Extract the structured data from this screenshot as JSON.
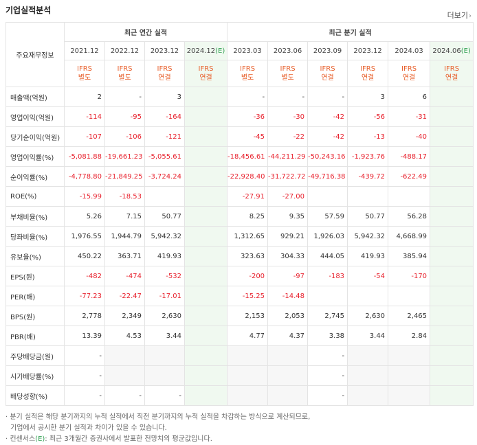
{
  "title": "기업실적분석",
  "more_label": "더보기",
  "table": {
    "header_label": "주요재무정보",
    "annual_group": "최근 연간 실적",
    "quarter_group": "최근 분기 실적",
    "periods": [
      "2021.12",
      "2022.12",
      "2023.12",
      "2024.12",
      "2023.03",
      "2023.06",
      "2023.09",
      "2023.12",
      "2024.03",
      "2024.06"
    ],
    "estimate_mark": "(E)",
    "accounting": [
      {
        "a": "IFRS",
        "b": "별도"
      },
      {
        "a": "IFRS",
        "b": "별도"
      },
      {
        "a": "IFRS",
        "b": "연결"
      },
      {
        "a": "IFRS",
        "b": "연결"
      },
      {
        "a": "IFRS",
        "b": "별도"
      },
      {
        "a": "IFRS",
        "b": "별도"
      },
      {
        "a": "IFRS",
        "b": "연결"
      },
      {
        "a": "IFRS",
        "b": "연결"
      },
      {
        "a": "IFRS",
        "b": "연결"
      },
      {
        "a": "IFRS",
        "b": "연결"
      }
    ],
    "rows": [
      {
        "label": "매출액(억원)",
        "values": [
          "2",
          "-",
          "3",
          "",
          "-",
          "-",
          "-",
          "3",
          "6",
          ""
        ]
      },
      {
        "label": "영업이익(억원)",
        "values": [
          "-114",
          "-95",
          "-164",
          "",
          "-36",
          "-30",
          "-42",
          "-56",
          "-31",
          ""
        ]
      },
      {
        "label": "당기순이익(억원)",
        "values": [
          "-107",
          "-106",
          "-121",
          "",
          "-45",
          "-22",
          "-42",
          "-13",
          "-40",
          ""
        ]
      },
      {
        "label": "영업이익률(%)",
        "values": [
          "-5,081.88",
          "-19,661.23",
          "-5,055.61",
          "",
          "-18,456.61",
          "-44,211.29",
          "-50,243.16",
          "-1,923.76",
          "-488.17",
          ""
        ]
      },
      {
        "label": "순이익률(%)",
        "values": [
          "-4,778.80",
          "-21,849.25",
          "-3,724.24",
          "",
          "-22,928.40",
          "-31,722.72",
          "-49,716.38",
          "-439.72",
          "-622.49",
          ""
        ]
      },
      {
        "label": "ROE(%)",
        "values": [
          "-15.99",
          "-18.53",
          "",
          "",
          "-27.91",
          "-27.00",
          "",
          "",
          "",
          ""
        ]
      },
      {
        "label": "부채비율(%)",
        "values": [
          "5.26",
          "7.15",
          "50.77",
          "",
          "8.25",
          "9.35",
          "57.59",
          "50.77",
          "56.28",
          ""
        ]
      },
      {
        "label": "당좌비율(%)",
        "values": [
          "1,976.55",
          "1,944.79",
          "5,942.32",
          "",
          "1,312.65",
          "929.21",
          "1,926.03",
          "5,942.32",
          "4,668.99",
          ""
        ]
      },
      {
        "label": "유보율(%)",
        "values": [
          "450.22",
          "363.71",
          "419.93",
          "",
          "323.63",
          "304.33",
          "444.05",
          "419.93",
          "385.94",
          ""
        ]
      },
      {
        "label": "EPS(원)",
        "values": [
          "-482",
          "-474",
          "-532",
          "",
          "-200",
          "-97",
          "-183",
          "-54",
          "-170",
          ""
        ]
      },
      {
        "label": "PER(배)",
        "values": [
          "-77.23",
          "-22.47",
          "-17.01",
          "",
          "-15.25",
          "-14.48",
          "",
          "",
          "",
          ""
        ]
      },
      {
        "label": "BPS(원)",
        "values": [
          "2,778",
          "2,349",
          "2,630",
          "",
          "2,153",
          "2,053",
          "2,745",
          "2,630",
          "2,465",
          ""
        ]
      },
      {
        "label": "PBR(배)",
        "values": [
          "13.39",
          "4.53",
          "3.44",
          "",
          "4.77",
          "4.37",
          "3.38",
          "3.44",
          "2.84",
          ""
        ]
      },
      {
        "label": "주당배당금(원)",
        "values": [
          "-",
          "",
          "",
          "",
          "",
          "",
          "-",
          "",
          "",
          ""
        ],
        "gray": [
          false,
          true,
          true,
          false,
          true,
          true,
          false,
          true,
          true,
          false
        ]
      },
      {
        "label": "시가배당률(%)",
        "values": [
          "-",
          "",
          "",
          "",
          "",
          "",
          "-",
          "",
          "",
          ""
        ],
        "gray": [
          false,
          true,
          true,
          false,
          true,
          true,
          false,
          true,
          true,
          false
        ]
      },
      {
        "label": "배당성향(%)",
        "values": [
          "-",
          "-",
          "-",
          "",
          "",
          "",
          "-",
          "",
          "",
          ""
        ],
        "gray": [
          false,
          false,
          false,
          false,
          true,
          true,
          false,
          true,
          true,
          false
        ]
      }
    ]
  },
  "footnotes": {
    "line1": "분기 실적은 해당 분기까지의 누적 실적에서 직전 분기까지의 누적 실적을 차감하는 방식으로 계산되므로,",
    "line2": "기업에서 공시한 분기 실적과 차이가 있을 수 있습니다.",
    "line3_prefix": "컨센서스",
    "line3_mark": "(E)",
    "line3_suffix": ": 최근 3개월간 증권사에서 발표한 전망치의 평균값입니다."
  }
}
